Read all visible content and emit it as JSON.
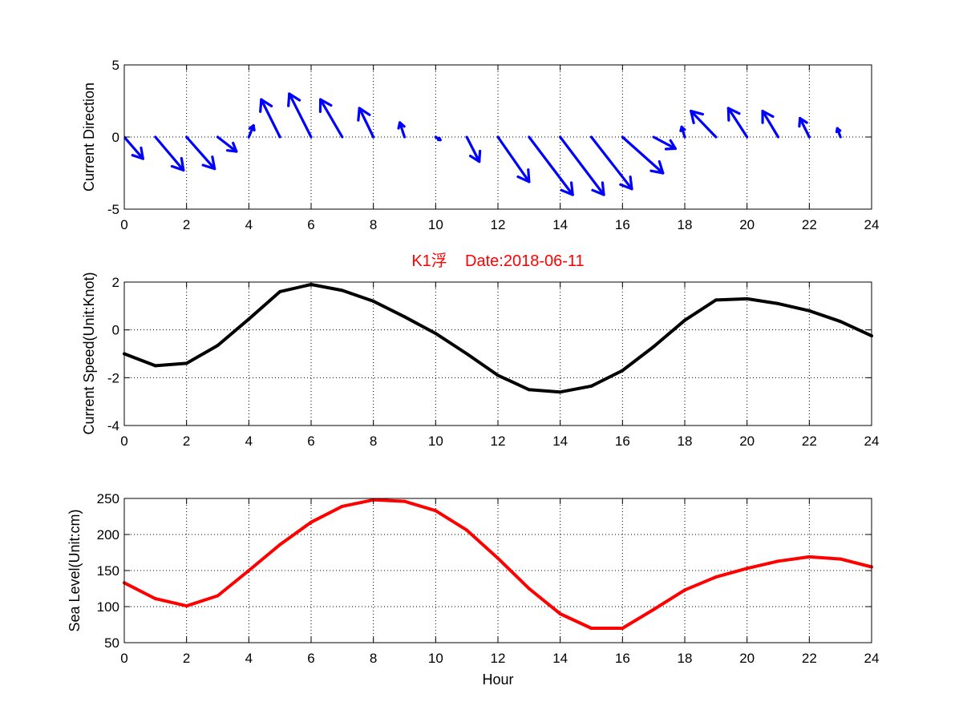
{
  "figure": {
    "title": "K1浮    Date:2018-06-11",
    "title_color": "#ff0000",
    "x_ticks": [
      "0",
      "2",
      "4",
      "6",
      "8",
      "10",
      "12",
      "14",
      "16",
      "18",
      "20",
      "22",
      "24"
    ]
  },
  "chart_data": [
    {
      "type": "quiver",
      "name": "direction-panel",
      "ylabel": "Current Direction",
      "xlabel": "",
      "xlim": [
        0,
        24
      ],
      "ylim": [
        -5,
        5
      ],
      "y_ticks": [
        "-5",
        "0",
        "5"
      ],
      "grid": true,
      "color": "#0000ff",
      "x": [
        0,
        1,
        2,
        3,
        4,
        5,
        6,
        7,
        8,
        9,
        10,
        11,
        12,
        13,
        14,
        15,
        16,
        17,
        18,
        19,
        20,
        21,
        22,
        23
      ],
      "u": [
        0.6,
        0.9,
        0.9,
        0.6,
        0.15,
        -0.6,
        -0.7,
        -0.7,
        -0.45,
        -0.15,
        0.15,
        0.4,
        1.0,
        1.4,
        1.4,
        1.3,
        1.3,
        0.7,
        -0.1,
        -0.8,
        -0.6,
        -0.5,
        -0.3,
        -0.1
      ],
      "v": [
        -1.5,
        -2.3,
        -2.2,
        -1.0,
        0.8,
        2.6,
        3.0,
        2.6,
        2.0,
        1.0,
        -0.2,
        -1.7,
        -3.1,
        -4.0,
        -4.0,
        -3.6,
        -2.5,
        -0.8,
        0.7,
        1.8,
        2.0,
        1.8,
        1.3,
        0.6
      ]
    },
    {
      "type": "line",
      "name": "speed-panel",
      "ylabel": "Current Speed(Unit:Knot)",
      "xlabel": "",
      "xlim": [
        0,
        24
      ],
      "ylim": [
        -4,
        2
      ],
      "y_ticks": [
        "-4",
        "-2",
        "0",
        "2"
      ],
      "grid": true,
      "color": "#000000",
      "x": [
        0,
        1,
        2,
        3,
        4,
        5,
        6,
        7,
        8,
        9,
        10,
        11,
        12,
        13,
        14,
        15,
        16,
        17,
        18,
        19,
        20,
        21,
        22,
        23,
        24
      ],
      "y": [
        -1.0,
        -1.5,
        -1.4,
        -0.65,
        0.45,
        1.6,
        1.9,
        1.65,
        1.2,
        0.55,
        -0.15,
        -1.0,
        -1.9,
        -2.5,
        -2.6,
        -2.35,
        -1.7,
        -0.7,
        0.4,
        1.25,
        1.3,
        1.1,
        0.8,
        0.35,
        -0.25
      ]
    },
    {
      "type": "line",
      "name": "sealevel-panel",
      "ylabel": "Sea Level(Unit:cm)",
      "xlabel": "Hour",
      "xlim": [
        0,
        24
      ],
      "ylim": [
        50,
        250
      ],
      "y_ticks": [
        "50",
        "100",
        "150",
        "200",
        "250"
      ],
      "grid": true,
      "color": "#ff0000",
      "x": [
        0,
        1,
        2,
        3,
        4,
        5,
        6,
        7,
        8,
        9,
        10,
        11,
        12,
        13,
        14,
        15,
        16,
        17,
        18,
        19,
        20,
        21,
        22,
        23,
        24
      ],
      "y": [
        133,
        111,
        101,
        115,
        150,
        186,
        217,
        239,
        248,
        246,
        233,
        206,
        167,
        125,
        90,
        70,
        70,
        96,
        123,
        141,
        153,
        163,
        169,
        166,
        155
      ]
    }
  ]
}
